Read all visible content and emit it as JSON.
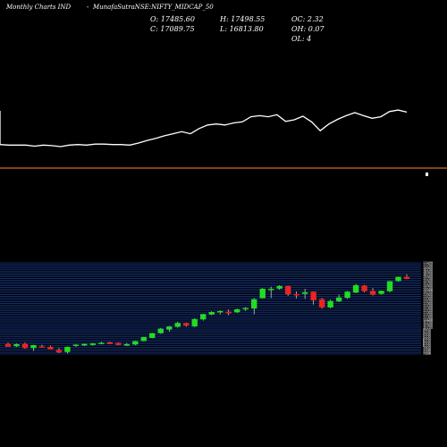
{
  "header": {
    "source": "Monthly Charts IND",
    "separator": "-",
    "symbol": "MunafaSutraNSE:NIFTY_MIDCAP_50"
  },
  "ohlc": {
    "open_label": "O:",
    "open": "17485.60",
    "close_label": "C:",
    "close": "17089.75",
    "high_label": "H:",
    "high": "17498.55",
    "low_label": "L:",
    "low": "16813.80",
    "oc_label": "OC:",
    "oc": "2.32",
    "oh_label": "OH:",
    "oh": "0.07",
    "ol_label": "OL:",
    "ol": "4"
  },
  "colors": {
    "background": "#000000",
    "line": "#ffffff",
    "separator": "#d2691e",
    "grid": "#1f4bb4",
    "up": "#22dd22",
    "down": "#ee2222",
    "text": "#ffffff"
  },
  "chart_data": [
    {
      "type": "line",
      "title": "",
      "grid": false,
      "values": [
        17.3,
        17.2,
        17.2,
        17.2,
        17.0,
        17.2,
        17.1,
        16.9,
        17.2,
        17.3,
        17.2,
        17.4,
        17.4,
        17.3,
        17.3,
        17.2,
        17.6,
        18.1,
        18.5,
        19.0,
        19.4,
        19.8,
        19.4,
        20.4,
        21.1,
        21.3,
        21.1,
        21.5,
        21.7,
        22.7,
        22.9,
        22.7,
        23.1,
        21.8,
        22.1,
        22.8,
        21.7,
        20.0,
        21.3,
        22.2,
        22.9,
        23.5,
        22.9,
        22.4,
        22.7,
        23.7,
        24.0,
        23.6
      ]
    },
    {
      "type": "candlestick",
      "title": "",
      "grid": true,
      "y_ticks": [
        "17499",
        "17300",
        "17100",
        "16900",
        "16700",
        "16500",
        "16300",
        "16100",
        "15900",
        "15700",
        "15500",
        "15300",
        "15100",
        "14900",
        "14700",
        "14500",
        "14300",
        "14100",
        "13900",
        "13700",
        "13500",
        "13300",
        "13100",
        "12900",
        "12700",
        "12500",
        "12300",
        "12100",
        "11900",
        "11700",
        "11500",
        "11300",
        "11100",
        "10900",
        "10700",
        "10500",
        "10300",
        "10100",
        "9900",
        "9700",
        "9500",
        "9300",
        "9100",
        "8900",
        "8700",
        "8500",
        "8300",
        "8100",
        "7900",
        "7700",
        "7500",
        "7300",
        "7149"
      ],
      "candles": [
        {
          "o": 8300,
          "h": 8450,
          "l": 8050,
          "c": 8000
        },
        {
          "o": 8050,
          "h": 8350,
          "l": 7950,
          "c": 8250
        },
        {
          "o": 8300,
          "h": 8450,
          "l": 7750,
          "c": 7850
        },
        {
          "o": 7850,
          "h": 8200,
          "l": 7500,
          "c": 8150
        },
        {
          "o": 8000,
          "h": 8200,
          "l": 7850,
          "c": 7950
        },
        {
          "o": 7950,
          "h": 8100,
          "l": 7650,
          "c": 7700
        },
        {
          "o": 7600,
          "h": 7850,
          "l": 7250,
          "c": 7350
        },
        {
          "o": 7400,
          "h": 8000,
          "l": 7200,
          "c": 7950
        },
        {
          "o": 8100,
          "h": 8250,
          "l": 7950,
          "c": 8200
        },
        {
          "o": 8150,
          "h": 8350,
          "l": 8050,
          "c": 8300
        },
        {
          "o": 8200,
          "h": 8400,
          "l": 8100,
          "c": 8350
        },
        {
          "o": 8300,
          "h": 8550,
          "l": 8250,
          "c": 8400
        },
        {
          "o": 8450,
          "h": 8550,
          "l": 8250,
          "c": 8300
        },
        {
          "o": 8400,
          "h": 8450,
          "l": 8150,
          "c": 8200
        },
        {
          "o": 8250,
          "h": 8400,
          "l": 8050,
          "c": 8250
        },
        {
          "o": 8250,
          "h": 8650,
          "l": 8150,
          "c": 8600
        },
        {
          "o": 8650,
          "h": 9100,
          "l": 8600,
          "c": 9050
        },
        {
          "o": 9000,
          "h": 9550,
          "l": 8950,
          "c": 9500
        },
        {
          "o": 9550,
          "h": 10100,
          "l": 9450,
          "c": 10000
        },
        {
          "o": 9950,
          "h": 10350,
          "l": 9700,
          "c": 10250
        },
        {
          "o": 10250,
          "h": 10800,
          "l": 10150,
          "c": 10650
        },
        {
          "o": 10650,
          "h": 10700,
          "l": 10250,
          "c": 10400
        },
        {
          "o": 10300,
          "h": 11200,
          "l": 10200,
          "c": 11100
        },
        {
          "o": 11100,
          "h": 11700,
          "l": 10950,
          "c": 11650
        },
        {
          "o": 11650,
          "h": 12000,
          "l": 11550,
          "c": 11900
        },
        {
          "o": 11900,
          "h": 12100,
          "l": 11650,
          "c": 12000
        },
        {
          "o": 11950,
          "h": 12200,
          "l": 11550,
          "c": 11800
        },
        {
          "o": 11900,
          "h": 12300,
          "l": 11800,
          "c": 12200
        },
        {
          "o": 12250,
          "h": 12450,
          "l": 12050,
          "c": 12350
        },
        {
          "o": 12350,
          "h": 13500,
          "l": 11650,
          "c": 13350
        },
        {
          "o": 13500,
          "h": 14650,
          "l": 13450,
          "c": 14550
        },
        {
          "o": 14550,
          "h": 14800,
          "l": 13500,
          "c": 14550
        },
        {
          "o": 14600,
          "h": 14950,
          "l": 14450,
          "c": 14850
        },
        {
          "o": 14850,
          "h": 14900,
          "l": 13750,
          "c": 13950
        },
        {
          "o": 13950,
          "h": 14250,
          "l": 13450,
          "c": 13900
        },
        {
          "o": 14000,
          "h": 14550,
          "l": 13400,
          "c": 14150
        },
        {
          "o": 14200,
          "h": 14250,
          "l": 12750,
          "c": 13250
        },
        {
          "o": 13350,
          "h": 13500,
          "l": 12300,
          "c": 12450
        },
        {
          "o": 12450,
          "h": 13300,
          "l": 12350,
          "c": 13150
        },
        {
          "o": 13150,
          "h": 13900,
          "l": 13050,
          "c": 13550
        },
        {
          "o": 13550,
          "h": 14300,
          "l": 13400,
          "c": 14200
        },
        {
          "o": 14150,
          "h": 15100,
          "l": 14050,
          "c": 14950
        },
        {
          "o": 14900,
          "h": 15000,
          "l": 14150,
          "c": 14300
        },
        {
          "o": 14300,
          "h": 14650,
          "l": 13800,
          "c": 13900
        },
        {
          "o": 14000,
          "h": 14350,
          "l": 13900,
          "c": 14300
        },
        {
          "o": 14300,
          "h": 15450,
          "l": 14150,
          "c": 15400
        },
        {
          "o": 15450,
          "h": 15950,
          "l": 15350,
          "c": 15900
        },
        {
          "o": 15900,
          "h": 16200,
          "l": 15650,
          "c": 15700
        }
      ]
    }
  ]
}
